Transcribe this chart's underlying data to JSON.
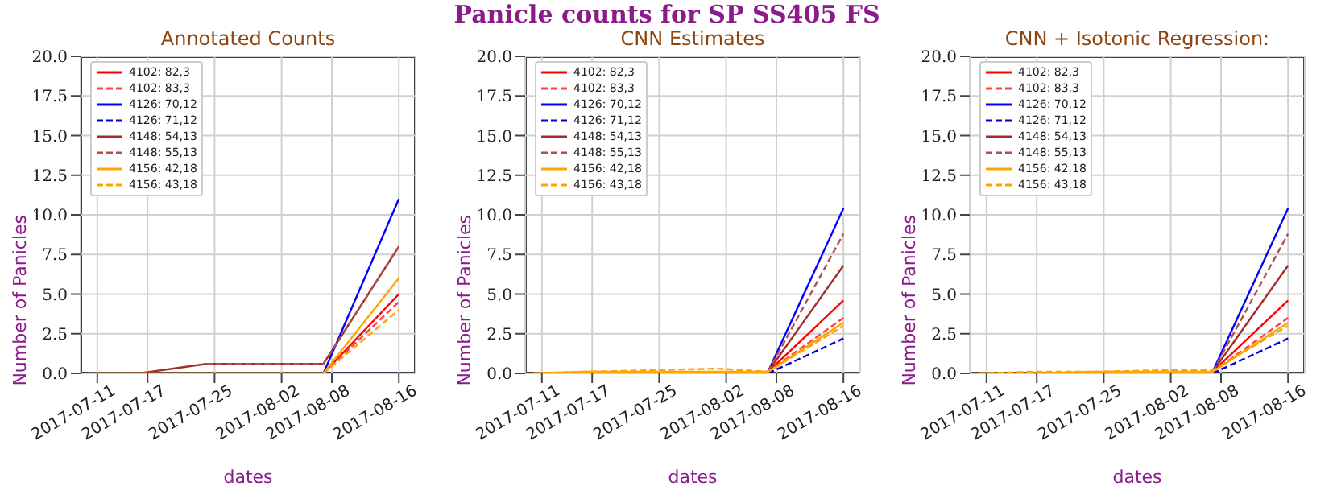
{
  "chart_data": [
    {
      "type": "line",
      "title": "Annotated Counts",
      "xlabel": "dates",
      "ylabel": "Number of Panicles",
      "legend": "top left",
      "grid": true,
      "x": [
        "2017-07-10",
        "2017-07-16",
        "2017-07-24",
        "2017-08-01",
        "2017-08-07",
        "2017-08-16"
      ],
      "xlim": [
        "2017-07-09",
        "2017-08-18"
      ],
      "xticks": [
        {
          "value": "2017-07-11",
          "label": "2017-07-11"
        },
        {
          "value": "2017-07-17",
          "label": "2017-07-17"
        },
        {
          "value": "2017-07-25",
          "label": "2017-07-25"
        },
        {
          "value": "2017-08-02",
          "label": "2017-08-02"
        },
        {
          "value": "2017-08-08",
          "label": "2017-08-08"
        },
        {
          "value": "2017-08-16",
          "label": "2017-08-16"
        }
      ],
      "ylim": [
        0,
        20
      ],
      "yticks": [
        {
          "value": 0,
          "label": "0.0"
        },
        {
          "value": 2.5,
          "label": "2.5"
        },
        {
          "value": 5,
          "label": "5.0"
        },
        {
          "value": 7.5,
          "label": "7.5"
        },
        {
          "value": 10,
          "label": "10.0"
        },
        {
          "value": 12.5,
          "label": "12.5"
        },
        {
          "value": 15,
          "label": "15.0"
        },
        {
          "value": 17.5,
          "label": "17.5"
        },
        {
          "value": 20,
          "label": "20.0"
        }
      ],
      "series": [
        {
          "name": "4102: 82,3",
          "color": "#ff0000",
          "line_style": "solid",
          "values": [
            null,
            null,
            null,
            null,
            0,
            5
          ]
        },
        {
          "name": "4102: 83,3",
          "color": "#ff4040",
          "line_style": "dashed",
          "values": [
            null,
            null,
            null,
            null,
            0,
            4.5
          ]
        },
        {
          "name": "4126: 70,12",
          "color": "#0000ff",
          "line_style": "solid",
          "values": [
            null,
            null,
            null,
            null,
            0,
            11
          ]
        },
        {
          "name": "4126: 71,12",
          "color": "#0000cc",
          "line_style": "dashed",
          "values": [
            null,
            null,
            null,
            null,
            0,
            0
          ]
        },
        {
          "name": "4148: 54,13",
          "color": "#a52a2a",
          "line_style": "solid",
          "values": [
            null,
            0,
            0.6,
            0.6,
            0.6,
            8
          ]
        },
        {
          "name": "4148: 55,13",
          "color": "#b05050",
          "line_style": "dashed",
          "values": [
            null,
            null,
            0.6,
            0.6,
            0.6,
            8
          ]
        },
        {
          "name": "4156: 42,18",
          "color": "#ffa500",
          "line_style": "solid",
          "values": [
            0,
            0,
            0,
            0,
            0,
            6
          ]
        },
        {
          "name": "4156: 43,18",
          "color": "#ffa500",
          "line_style": "dashed",
          "values": [
            null,
            null,
            null,
            null,
            0,
            4
          ]
        }
      ]
    },
    {
      "type": "line",
      "title": "CNN Estimates",
      "annotations": [
        "Panicle counts for SP SS405 FS"
      ],
      "xlabel": "dates",
      "ylabel": "Number of Panicles",
      "legend": "top left",
      "grid": true,
      "x": [
        "2017-07-10",
        "2017-07-16",
        "2017-07-24",
        "2017-08-01",
        "2017-08-07",
        "2017-08-16"
      ],
      "xlim": [
        "2017-07-09",
        "2017-08-18"
      ],
      "xticks": [
        {
          "value": "2017-07-11",
          "label": "2017-07-11"
        },
        {
          "value": "2017-07-17",
          "label": "2017-07-17"
        },
        {
          "value": "2017-07-25",
          "label": "2017-07-25"
        },
        {
          "value": "2017-08-02",
          "label": "2017-08-02"
        },
        {
          "value": "2017-08-08",
          "label": "2017-08-08"
        },
        {
          "value": "2017-08-16",
          "label": "2017-08-16"
        }
      ],
      "ylim": [
        0,
        20
      ],
      "yticks": [
        {
          "value": 0,
          "label": "0.0"
        },
        {
          "value": 2.5,
          "label": "2.5"
        },
        {
          "value": 5,
          "label": "5.0"
        },
        {
          "value": 7.5,
          "label": "7.5"
        },
        {
          "value": 10,
          "label": "10.0"
        },
        {
          "value": 12.5,
          "label": "12.5"
        },
        {
          "value": 15,
          "label": "15.0"
        },
        {
          "value": 17.5,
          "label": "17.5"
        },
        {
          "value": 20,
          "label": "20.0"
        }
      ],
      "series": [
        {
          "name": "4102: 82,3",
          "color": "#ff0000",
          "line_style": "solid",
          "values": [
            null,
            null,
            null,
            null,
            0.1,
            4.6
          ]
        },
        {
          "name": "4102: 83,3",
          "color": "#ff4040",
          "line_style": "dashed",
          "values": [
            null,
            null,
            null,
            null,
            0.1,
            3.5
          ]
        },
        {
          "name": "4126: 70,12",
          "color": "#0000ff",
          "line_style": "solid",
          "values": [
            null,
            null,
            null,
            null,
            0.1,
            10.4
          ]
        },
        {
          "name": "4126: 71,12",
          "color": "#0000cc",
          "line_style": "dashed",
          "values": [
            null,
            null,
            null,
            null,
            0,
            2.2
          ]
        },
        {
          "name": "4148: 54,13",
          "color": "#a52a2a",
          "line_style": "solid",
          "values": [
            null,
            null,
            null,
            null,
            0.1,
            6.8
          ]
        },
        {
          "name": "4148: 55,13",
          "color": "#b05050",
          "line_style": "dashed",
          "values": [
            null,
            null,
            null,
            null,
            0.1,
            8.8
          ]
        },
        {
          "name": "4156: 42,18",
          "color": "#ffa500",
          "line_style": "solid",
          "values": [
            0,
            0.1,
            0.1,
            0.1,
            0.1,
            3.2
          ]
        },
        {
          "name": "4156: 43,18",
          "color": "#ffa500",
          "line_style": "dashed",
          "values": [
            0,
            0.1,
            0.2,
            0.3,
            0.1,
            3
          ]
        }
      ]
    },
    {
      "type": "line",
      "title": "CNN + Isotonic Regression:",
      "xlabel": "dates",
      "ylabel": "Number of Panicles",
      "legend": "top left",
      "grid": true,
      "x": [
        "2017-07-10",
        "2017-07-16",
        "2017-07-24",
        "2017-08-01",
        "2017-08-07",
        "2017-08-16"
      ],
      "xlim": [
        "2017-07-09",
        "2017-08-18"
      ],
      "xticks": [
        {
          "value": "2017-07-11",
          "label": "2017-07-11"
        },
        {
          "value": "2017-07-17",
          "label": "2017-07-17"
        },
        {
          "value": "2017-07-25",
          "label": "2017-07-25"
        },
        {
          "value": "2017-08-02",
          "label": "2017-08-02"
        },
        {
          "value": "2017-08-08",
          "label": "2017-08-08"
        },
        {
          "value": "2017-08-16",
          "label": "2017-08-16"
        }
      ],
      "ylim": [
        0,
        20
      ],
      "yticks": [
        {
          "value": 0,
          "label": "0.0"
        },
        {
          "value": 2.5,
          "label": "2.5"
        },
        {
          "value": 5,
          "label": "5.0"
        },
        {
          "value": 7.5,
          "label": "7.5"
        },
        {
          "value": 10,
          "label": "10.0"
        },
        {
          "value": 12.5,
          "label": "12.5"
        },
        {
          "value": 15,
          "label": "15.0"
        },
        {
          "value": 17.5,
          "label": "17.5"
        },
        {
          "value": 20,
          "label": "20.0"
        }
      ],
      "series": [
        {
          "name": "4102: 82,3",
          "color": "#ff0000",
          "line_style": "solid",
          "values": [
            null,
            null,
            null,
            null,
            0.1,
            4.6
          ]
        },
        {
          "name": "4102: 83,3",
          "color": "#ff4040",
          "line_style": "dashed",
          "values": [
            null,
            null,
            null,
            null,
            0.1,
            3.5
          ]
        },
        {
          "name": "4126: 70,12",
          "color": "#0000ff",
          "line_style": "solid",
          "values": [
            null,
            null,
            null,
            null,
            0.1,
            10.4
          ]
        },
        {
          "name": "4126: 71,12",
          "color": "#0000cc",
          "line_style": "dashed",
          "values": [
            null,
            null,
            null,
            null,
            0,
            2.2
          ]
        },
        {
          "name": "4148: 54,13",
          "color": "#a52a2a",
          "line_style": "solid",
          "values": [
            null,
            null,
            null,
            null,
            0.1,
            6.8
          ]
        },
        {
          "name": "4148: 55,13",
          "color": "#b05050",
          "line_style": "dashed",
          "values": [
            null,
            null,
            null,
            null,
            0.1,
            8.8
          ]
        },
        {
          "name": "4156: 42,18",
          "color": "#ffa500",
          "line_style": "solid",
          "values": [
            0,
            0,
            0.1,
            0.1,
            0.1,
            3.2
          ]
        },
        {
          "name": "4156: 43,18",
          "color": "#ffa500",
          "line_style": "dashed",
          "values": [
            0,
            0.1,
            0.1,
            0.2,
            0.2,
            3
          ]
        }
      ]
    }
  ]
}
